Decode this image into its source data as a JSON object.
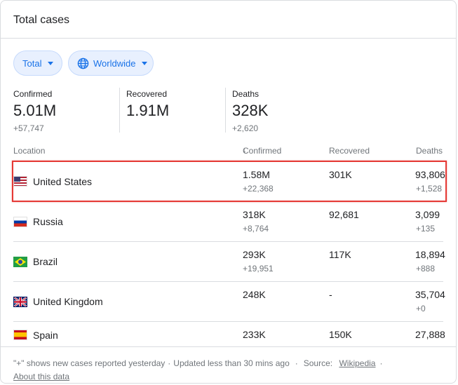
{
  "title": "Total cases",
  "filters": {
    "total_label": "Total",
    "region_label": "Worldwide"
  },
  "stats": {
    "confirmed": {
      "label": "Confirmed",
      "value": "5.01M",
      "delta": "+57,747"
    },
    "recovered": {
      "label": "Recovered",
      "value": "1.91M"
    },
    "deaths": {
      "label": "Deaths",
      "value": "328K",
      "delta": "+2,620"
    }
  },
  "table": {
    "headers": {
      "location": "Location",
      "confirmed": "Confirmed",
      "recovered": "Recovered",
      "deaths": "Deaths"
    },
    "rows": [
      {
        "location": "United States",
        "flag": "us-flag",
        "confirmed": "1.58M",
        "confirmed_delta": "+22,368",
        "recovered": "301K",
        "deaths": "93,806",
        "deaths_delta": "+1,528"
      },
      {
        "location": "Russia",
        "flag": "ru-flag",
        "confirmed": "318K",
        "confirmed_delta": "+8,764",
        "recovered": "92,681",
        "deaths": "3,099",
        "deaths_delta": "+135"
      },
      {
        "location": "Brazil",
        "flag": "br-flag",
        "confirmed": "293K",
        "confirmed_delta": "+19,951",
        "recovered": "117K",
        "deaths": "18,894",
        "deaths_delta": "+888"
      },
      {
        "location": "United Kingdom",
        "flag": "uk-flag",
        "confirmed": "248K",
        "confirmed_delta": "",
        "recovered": "-",
        "deaths": "35,704",
        "deaths_delta": "+0"
      },
      {
        "location": "Spain",
        "flag": "es-flag",
        "confirmed": "233K",
        "confirmed_delta": "",
        "recovered": "150K",
        "deaths": "27,888",
        "deaths_delta": ""
      }
    ]
  },
  "footer": {
    "note": "\"+\" shows new cases reported yesterday",
    "updated": "Updated less than 30 mins ago",
    "source_label": "Source:",
    "source_link": "Wikipedia",
    "about_link": "About this data"
  },
  "colors": {
    "accent": "#1a73e8",
    "chip_bg": "#e8f0fe",
    "highlight": "#e53935"
  }
}
